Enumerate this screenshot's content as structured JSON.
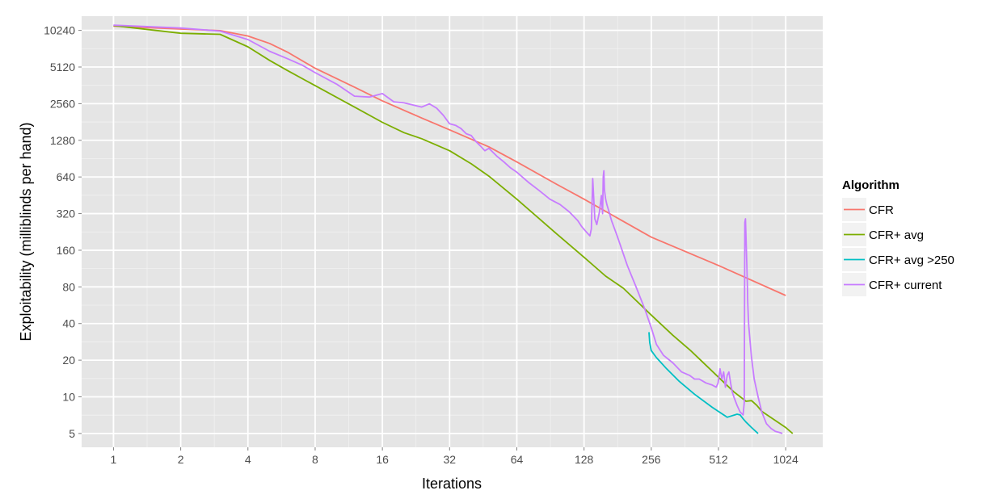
{
  "chart_data": {
    "type": "line",
    "title": "",
    "xlabel": "Iterations",
    "ylabel": "Exploitability (milliblinds per hand)",
    "x_scale": "log2",
    "y_scale": "log2",
    "xlim": [
      0.72,
      1500
    ],
    "ylim": [
      3.85,
      13400
    ],
    "x_ticks": [
      1,
      2,
      4,
      8,
      16,
      32,
      64,
      128,
      256,
      512,
      1024
    ],
    "x_tick_labels": [
      "1",
      "2",
      "4",
      "8",
      "16",
      "32",
      "64",
      "128",
      "256",
      "512",
      "1024"
    ],
    "y_ticks": [
      5,
      10,
      20,
      40,
      80,
      160,
      320,
      640,
      1280,
      2560,
      5120,
      10240
    ],
    "y_tick_labels": [
      "5",
      "10",
      "20",
      "40",
      "80",
      "160",
      "320",
      "640",
      "1280",
      "2560",
      "5120",
      "10240"
    ],
    "grid": true,
    "background": "#e5e5e5",
    "legend": {
      "title": "Algorithm",
      "position": "right"
    },
    "series": [
      {
        "name": "CFR",
        "color": "#f8766d",
        "x": [
          1,
          2,
          3,
          4,
          5,
          6,
          8,
          12,
          16,
          24,
          32,
          48,
          64,
          96,
          128,
          256,
          512,
          1024
        ],
        "y": [
          11100,
          10500,
          10200,
          9200,
          8000,
          6800,
          5000,
          3500,
          2700,
          1950,
          1560,
          1130,
          850,
          560,
          420,
          205,
          120,
          68
        ]
      },
      {
        "name": "CFR+ avg",
        "color": "#7cae00",
        "x": [
          1,
          2,
          3,
          4,
          5,
          6,
          8,
          12,
          16,
          20,
          24,
          32,
          40,
          48,
          64,
          96,
          128,
          160,
          192,
          256,
          320,
          384,
          512,
          600,
          680,
          720,
          760,
          800,
          1024,
          1100
        ],
        "y": [
          11200,
          9700,
          9500,
          7500,
          5800,
          4800,
          3600,
          2400,
          1800,
          1480,
          1320,
          1050,
          820,
          650,
          420,
          220,
          140,
          98,
          78,
          47,
          32,
          24,
          14.5,
          11,
          9.2,
          9.3,
          8.5,
          7.6,
          5.6,
          5
        ]
      },
      {
        "name": "CFR+ avg >250",
        "color": "#00bfc4",
        "x": [
          250,
          252,
          256,
          270,
          300,
          340,
          400,
          480,
          560,
          620,
          640,
          660,
          680,
          720,
          770
        ],
        "y": [
          34,
          28,
          24,
          21,
          17,
          13.5,
          10.5,
          8.2,
          6.8,
          7.2,
          7.1,
          6.6,
          6.2,
          5.6,
          5
        ]
      },
      {
        "name": "CFR+ current",
        "color": "#c77cff",
        "x": [
          1,
          2,
          3,
          4,
          5,
          6,
          7,
          8,
          10,
          12,
          14,
          16,
          18,
          20,
          24,
          26,
          28,
          30,
          32,
          34,
          36,
          38,
          40,
          42,
          44,
          46,
          48,
          52,
          56,
          60,
          64,
          72,
          80,
          90,
          100,
          110,
          120,
          125,
          130,
          136,
          138,
          140,
          143,
          146,
          150,
          153,
          155,
          156,
          157,
          158,
          160,
          162,
          165,
          170,
          180,
          200,
          220,
          240,
          256,
          270,
          290,
          320,
          350,
          380,
          400,
          420,
          450,
          480,
          500,
          510,
          520,
          530,
          540,
          550,
          560,
          570,
          580,
          590,
          600,
          620,
          640,
          660,
          668,
          672,
          676,
          680,
          686,
          690,
          692,
          696,
          700,
          710,
          720,
          740,
          770,
          800,
          840,
          880,
          920,
          960,
          990
        ],
        "y": [
          11300,
          10700,
          10100,
          8600,
          6900,
          6000,
          5300,
          4600,
          3700,
          2950,
          2900,
          3100,
          2650,
          2600,
          2400,
          2550,
          2350,
          2050,
          1750,
          1700,
          1600,
          1450,
          1400,
          1250,
          1150,
          1050,
          1100,
          950,
          850,
          760,
          700,
          580,
          500,
          420,
          380,
          330,
          280,
          250,
          230,
          210,
          240,
          620,
          290,
          260,
          330,
          450,
          320,
          640,
          720,
          500,
          420,
          380,
          340,
          280,
          210,
          120,
          78,
          52,
          37,
          27,
          22,
          19,
          16,
          15,
          14,
          14,
          13,
          12.5,
          12,
          13,
          17,
          14,
          16,
          12,
          15,
          16,
          13,
          11,
          10,
          8.5,
          7.5,
          7.1,
          9,
          270,
          290,
          200,
          120,
          80,
          60,
          45,
          38,
          28,
          21,
          14,
          10,
          7.5,
          6,
          5.5,
          5.2,
          5.1,
          5
        ]
      }
    ]
  }
}
